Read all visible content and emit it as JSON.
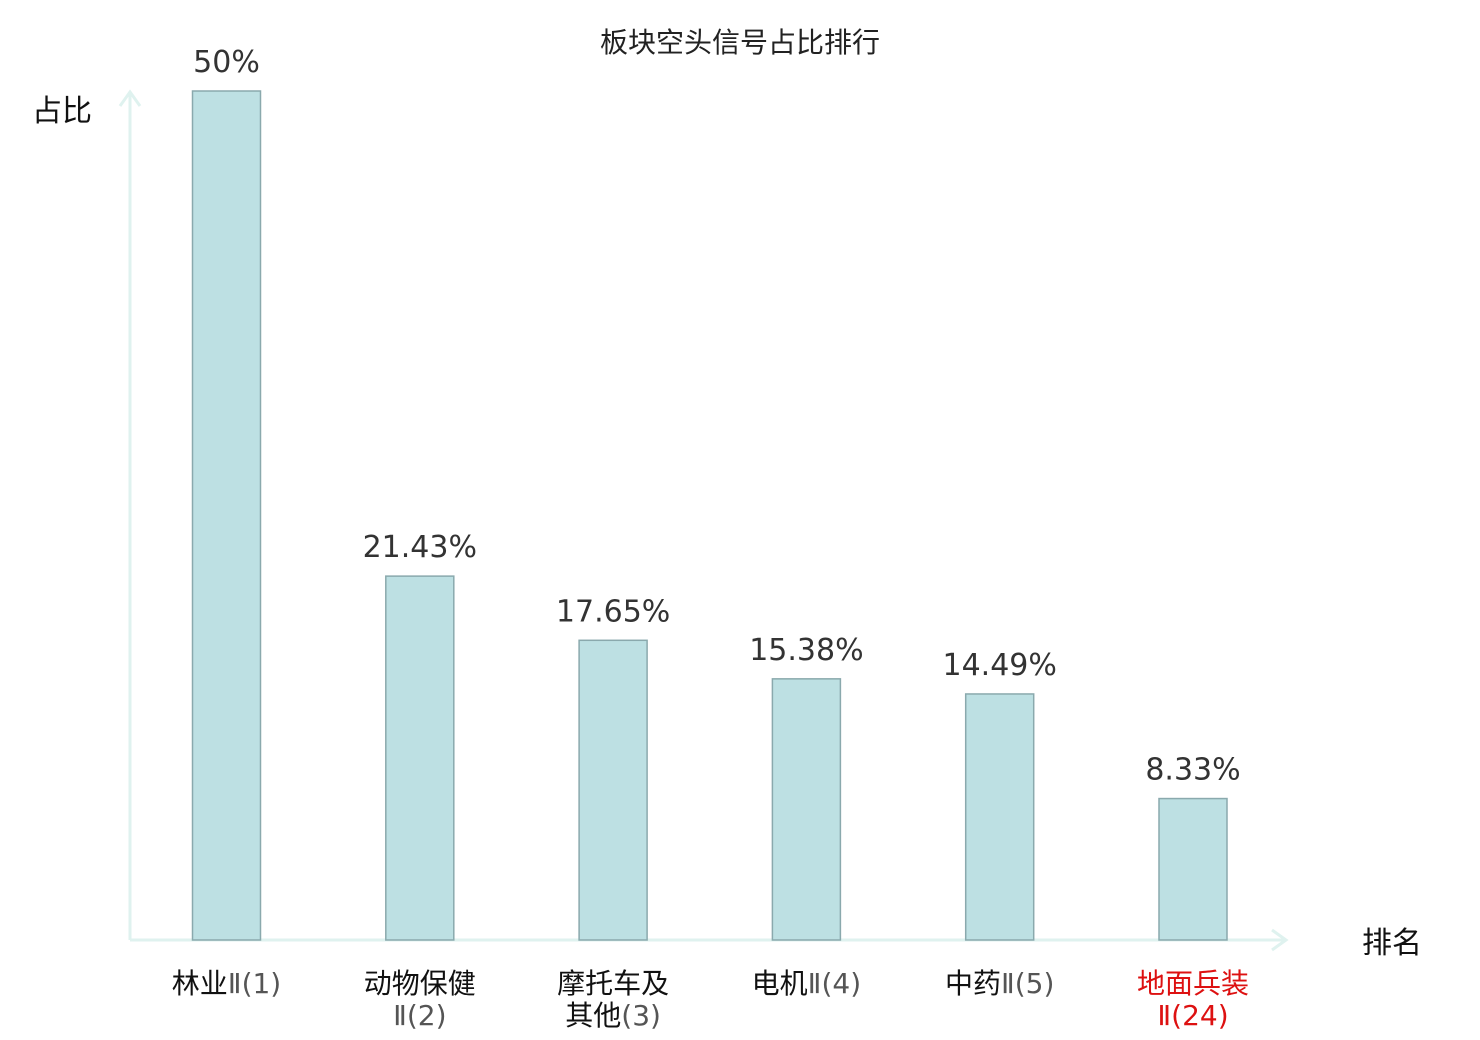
{
  "chart_data": {
    "type": "bar",
    "title": "板块空头信号占比排行",
    "xlabel": "排名",
    "ylabel": "占比",
    "ylim": [
      0,
      50
    ],
    "grid": false,
    "categories": [
      {
        "lines": [
          {
            "name": "林业",
            "code": "Ⅱ(1)"
          }
        ]
      },
      {
        "lines": [
          {
            "name": "动物保健",
            "code": ""
          },
          {
            "name": "",
            "code": "Ⅱ(2)"
          }
        ]
      },
      {
        "lines": [
          {
            "name": "摩托车及",
            "code": ""
          },
          {
            "name": "其他",
            "code": "(3)"
          }
        ]
      },
      {
        "lines": [
          {
            "name": "电机",
            "code": "Ⅱ(4)"
          }
        ]
      },
      {
        "lines": [
          {
            "name": "中药",
            "code": "Ⅱ(5)"
          }
        ]
      },
      {
        "lines": [
          {
            "name": "地面兵装",
            "code": ""
          },
          {
            "name": "",
            "code": "Ⅱ(24)"
          }
        ],
        "highlight": true
      }
    ],
    "values": [
      50,
      21.43,
      17.65,
      15.38,
      14.49,
      8.33
    ],
    "value_labels": [
      "50%",
      "21.43%",
      "17.65%",
      "15.38%",
      "14.49%",
      "8.33%"
    ],
    "colors": {
      "bar_fill": "#bde0e3",
      "bar_stroke": "#8aa9ad",
      "axis": "#dff2ef",
      "highlight_text": "#dd1111"
    }
  }
}
